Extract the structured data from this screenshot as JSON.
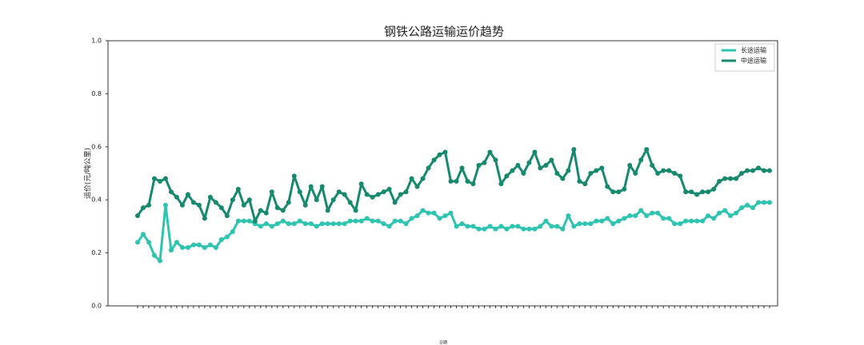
{
  "chart_data": {
    "type": "line",
    "title": "钢铁公路运输运价趋势",
    "y_label": "运价(元/吨公里)",
    "x_label": "日期",
    "categories": [
      null,
      null,
      null,
      null,
      null,
      null,
      null,
      null,
      null,
      null,
      null,
      null,
      null,
      null,
      null,
      null,
      null,
      null,
      null,
      null,
      null,
      null,
      null,
      null,
      null,
      null,
      null,
      null,
      null,
      null,
      null,
      null,
      null,
      null,
      null,
      null,
      null,
      null,
      null,
      null,
      null,
      null,
      null,
      null,
      null,
      null,
      null,
      null,
      null,
      null,
      null,
      null,
      null,
      null,
      null,
      null,
      null,
      null,
      null,
      null,
      null,
      null,
      null,
      null,
      null,
      null,
      null,
      null,
      null,
      null,
      null,
      null,
      null,
      null,
      null,
      null,
      null,
      null,
      null,
      null,
      null,
      null,
      null,
      null,
      null,
      null,
      null,
      null,
      null,
      null,
      null,
      null,
      null,
      null,
      null,
      null,
      null,
      null,
      null,
      null,
      null,
      null,
      null,
      null,
      null,
      null,
      null,
      null,
      null,
      null,
      null,
      null,
      null,
      null
    ],
    "series": [
      {
        "name": "长途运输",
        "color": "#2ec4b0",
        "values": [
          0.24,
          0.27,
          0.24,
          0.19,
          0.17,
          0.38,
          0.21,
          0.24,
          0.22,
          0.22,
          0.23,
          0.23,
          0.22,
          0.23,
          0.22,
          0.25,
          0.26,
          0.28,
          0.32,
          0.32,
          0.32,
          0.31,
          0.3,
          0.31,
          0.3,
          0.31,
          0.32,
          0.31,
          0.31,
          0.32,
          0.31,
          0.31,
          0.3,
          0.31,
          0.31,
          0.31,
          0.31,
          0.31,
          0.32,
          0.32,
          0.32,
          0.33,
          0.32,
          0.32,
          0.31,
          0.3,
          0.32,
          0.32,
          0.31,
          0.33,
          0.34,
          0.36,
          0.35,
          0.35,
          0.33,
          0.34,
          0.35,
          0.3,
          0.31,
          0.3,
          0.3,
          0.29,
          0.29,
          0.3,
          0.29,
          0.3,
          0.29,
          0.3,
          0.3,
          0.29,
          0.29,
          0.29,
          0.3,
          0.32,
          0.3,
          0.3,
          0.29,
          0.34,
          0.3,
          0.31,
          0.31,
          0.31,
          0.32,
          0.32,
          0.33,
          0.31,
          0.32,
          0.33,
          0.34,
          0.34,
          0.36,
          0.34,
          0.35,
          0.35,
          0.33,
          0.33,
          0.31,
          0.31,
          0.32,
          0.32,
          0.32,
          0.32,
          0.34,
          0.33,
          0.35,
          0.36,
          0.34,
          0.35,
          0.37,
          0.38,
          0.37,
          0.39,
          0.39,
          0.39
        ]
      },
      {
        "name": "中途运输",
        "color": "#178a6e",
        "values": [
          0.34,
          0.37,
          0.38,
          0.48,
          0.47,
          0.48,
          0.43,
          0.41,
          0.38,
          0.42,
          0.39,
          0.38,
          0.33,
          0.41,
          0.39,
          0.37,
          0.34,
          0.4,
          0.44,
          0.38,
          0.4,
          0.32,
          0.36,
          0.35,
          0.43,
          0.37,
          0.36,
          0.39,
          0.49,
          0.43,
          0.38,
          0.45,
          0.4,
          0.45,
          0.36,
          0.4,
          0.43,
          0.42,
          0.39,
          0.36,
          0.46,
          0.42,
          0.41,
          0.42,
          0.43,
          0.44,
          0.39,
          0.42,
          0.43,
          0.48,
          0.45,
          0.48,
          0.52,
          0.55,
          0.57,
          0.58,
          0.47,
          0.47,
          0.52,
          0.47,
          0.46,
          0.53,
          0.54,
          0.58,
          0.55,
          0.46,
          0.49,
          0.51,
          0.53,
          0.5,
          0.54,
          0.58,
          0.52,
          0.53,
          0.55,
          0.5,
          0.48,
          0.51,
          0.59,
          0.47,
          0.46,
          0.5,
          0.51,
          0.52,
          0.45,
          0.43,
          0.43,
          0.44,
          0.53,
          0.5,
          0.55,
          0.59,
          0.53,
          0.5,
          0.51,
          0.51,
          0.5,
          0.49,
          0.43,
          0.43,
          0.42,
          0.43,
          0.43,
          0.44,
          0.47,
          0.48,
          0.48,
          0.48,
          0.5,
          0.51,
          0.51,
          0.52,
          0.51,
          0.51
        ]
      }
    ],
    "ylim": [
      0,
      1
    ],
    "yticks": [
      {
        "value": 0,
        "label": "0.0"
      },
      {
        "value": 0.2,
        "label": "0.2"
      },
      {
        "value": 0.4,
        "label": "0.4"
      },
      {
        "value": 0.6,
        "label": "0.6"
      },
      {
        "value": 0.8,
        "label": "0.8"
      },
      {
        "value": 1,
        "label": "1.0"
      }
    ],
    "legend": "upper right"
  }
}
